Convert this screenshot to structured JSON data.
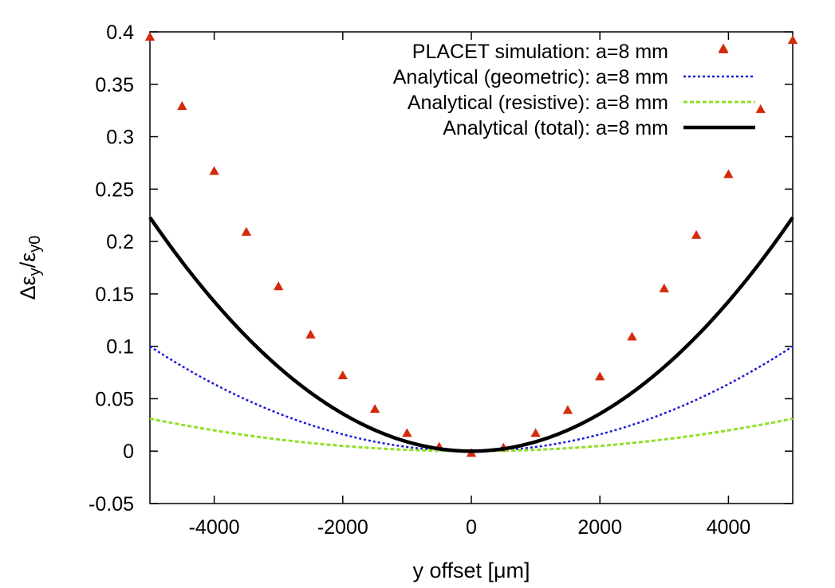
{
  "chart_data": {
    "type": "scatter",
    "xlabel": "y offset [μm]",
    "ylabel_parts": [
      "Δε",
      "y",
      "/ε",
      "y0"
    ],
    "xlim": [
      -5000,
      5000
    ],
    "ylim": [
      -0.05,
      0.4
    ],
    "x_ticks": [
      -4000,
      -2000,
      0,
      2000,
      4000
    ],
    "x_tick_labels": [
      "-4000",
      "-2000",
      "0",
      "2000",
      "4000"
    ],
    "y_ticks": [
      -0.05,
      0,
      0.05,
      0.1,
      0.15,
      0.2,
      0.25,
      0.3,
      0.35,
      0.4
    ],
    "y_tick_labels": [
      "-0.05",
      "0",
      "0.05",
      "0.1",
      "0.15",
      "0.2",
      "0.25",
      "0.3",
      "0.35",
      "0.4"
    ],
    "grid": false,
    "legend_position": "top-right",
    "series": [
      {
        "name": "PLACET simulation: a=8 mm",
        "kind": "points",
        "marker": "triangle",
        "color": "#d42a0c",
        "x": [
          -5000,
          -4500,
          -4000,
          -3500,
          -3000,
          -2500,
          -2000,
          -1500,
          -1000,
          -500,
          0,
          500,
          1000,
          1500,
          2000,
          2500,
          3000,
          3500,
          4000,
          4500,
          5000
        ],
        "y": [
          0.395,
          0.329,
          0.267,
          0.209,
          0.157,
          0.111,
          0.072,
          0.04,
          0.017,
          0.004,
          -0.002,
          0.003,
          0.017,
          0.039,
          0.071,
          0.109,
          0.155,
          0.206,
          0.264,
          0.326,
          0.392
        ],
        "x_shown": [
          -5000,
          -4500,
          -4000,
          -3500,
          -3000,
          -2500,
          -2000,
          -1500,
          -1000,
          -500,
          0,
          500,
          1000,
          1500,
          2000,
          2500,
          3000,
          3500,
          3920,
          4000,
          4500,
          5000
        ],
        "y_shown": [
          0.395,
          0.329,
          0.267,
          0.209,
          0.157,
          0.111,
          0.072,
          0.04,
          0.017,
          0.004,
          -0.002,
          0.003,
          0.017,
          0.039,
          0.071,
          0.109,
          0.155,
          0.206,
          0.383,
          0.264,
          0.326,
          0.392
        ]
      },
      {
        "name": "Analytical (geometric): a=8 mm",
        "kind": "line",
        "dash": "3,3",
        "color": "#1a1adb",
        "width": 2.5,
        "x": [
          -5000,
          -4000,
          -3000,
          -2000,
          -1000,
          0,
          1000,
          2000,
          3000,
          4000,
          5000
        ],
        "y": [
          0.1,
          0.064,
          0.036,
          0.016,
          0.004,
          0,
          0.004,
          0.016,
          0.036,
          0.064,
          0.1
        ]
      },
      {
        "name": "Analytical (resistive): a=8 mm",
        "kind": "line",
        "dash": "5,3",
        "color": "#8fdf24",
        "width": 3,
        "x": [
          -5000,
          -4000,
          -3000,
          -2000,
          -1000,
          0,
          1000,
          2000,
          3000,
          4000,
          5000
        ],
        "y": [
          0.031,
          0.0198,
          0.0112,
          0.005,
          0.0012,
          0,
          0.0012,
          0.005,
          0.0112,
          0.0198,
          0.031
        ]
      },
      {
        "name": "Analytical (total): a=8 mm",
        "kind": "line",
        "dash": "",
        "color": "#000000",
        "width": 4.5,
        "x": [
          -5000,
          -4000,
          -3000,
          -2000,
          -1000,
          0,
          1000,
          2000,
          3000,
          4000,
          5000
        ],
        "y": [
          0.223,
          0.1427,
          0.0803,
          0.0357,
          0.0089,
          0,
          0.0089,
          0.0357,
          0.0803,
          0.1427,
          0.223
        ]
      }
    ]
  }
}
